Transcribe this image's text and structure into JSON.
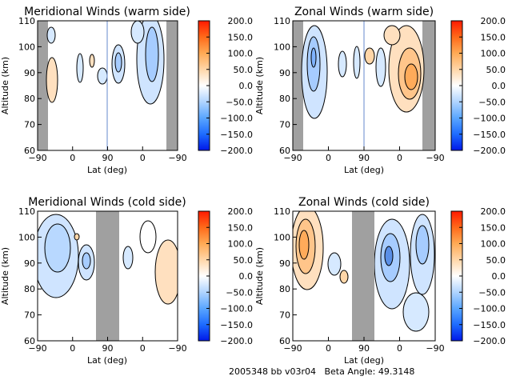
{
  "footer": {
    "run_id": "2005348 bb v03r04",
    "beta_label": "Beta Angle:",
    "beta_value": "49.3148"
  },
  "colorbar": {
    "ticks": [
      "200.0",
      "150.0",
      "100.0",
      "50.0",
      "0.0",
      "−50.0",
      "−100.0",
      "−150.0",
      "−200.0"
    ],
    "range": [
      -200,
      200
    ],
    "colors": [
      "#0018e8",
      "#1d6bff",
      "#5aa6ff",
      "#b0d4ff",
      "#ffffff",
      "#ffd6a8",
      "#ffaa55",
      "#ff6a1a",
      "#ff1a00"
    ]
  },
  "chart_data": [
    {
      "type": "heatmap",
      "title": "Meridional Winds (warm side)",
      "xlabel": "Lat (deg)",
      "ylabel": "Altitude (km)",
      "xticks": [
        "−90",
        "0",
        "90",
        "0",
        "−90"
      ],
      "yticks": [
        "60",
        "70",
        "80",
        "90",
        "100",
        "110"
      ],
      "ylim": [
        60,
        110
      ],
      "grey_bands": [
        "left edge near −90",
        "right edge near −90"
      ],
      "contour_levels": [
        -200,
        -150,
        -100,
        -50,
        0,
        50,
        100,
        150,
        200
      ]
    },
    {
      "type": "heatmap",
      "title": "Zonal Winds (warm side)",
      "xlabel": "Lat (deg)",
      "ylabel": "Altitude (km)",
      "xticks": [
        "−90",
        "0",
        "90",
        "0",
        "−90"
      ],
      "yticks": [
        "60",
        "70",
        "80",
        "90",
        "100",
        "110"
      ],
      "ylim": [
        60,
        110
      ],
      "grey_bands": [
        "left edge near −90",
        "right edge near −90"
      ],
      "contour_levels": [
        -200,
        -150,
        -100,
        -50,
        0,
        50,
        100,
        150,
        200
      ]
    },
    {
      "type": "heatmap",
      "title": "Meridional Winds (cold side)",
      "xlabel": "Lat (deg)",
      "ylabel": "Altitude (km)",
      "xticks": [
        "−90",
        "0",
        "90",
        "0",
        "−90"
      ],
      "yticks": [
        "60",
        "70",
        "80",
        "90",
        "100",
        "110"
      ],
      "ylim": [
        60,
        110
      ],
      "grey_bands": [
        "center near 90"
      ],
      "contour_levels": [
        -200,
        -150,
        -100,
        -50,
        0,
        50,
        100,
        150,
        200
      ]
    },
    {
      "type": "heatmap",
      "title": "Zonal Winds (cold side)",
      "xlabel": "Lat (deg)",
      "ylabel": "Altitude (km)",
      "xticks": [
        "−90",
        "0",
        "90",
        "0",
        "−90"
      ],
      "yticks": [
        "60",
        "70",
        "80",
        "90",
        "100",
        "110"
      ],
      "ylim": [
        60,
        110
      ],
      "grey_bands": [
        "center near 90"
      ],
      "contour_levels": [
        -200,
        -150,
        -100,
        -50,
        0,
        50,
        100,
        150,
        200
      ]
    }
  ]
}
